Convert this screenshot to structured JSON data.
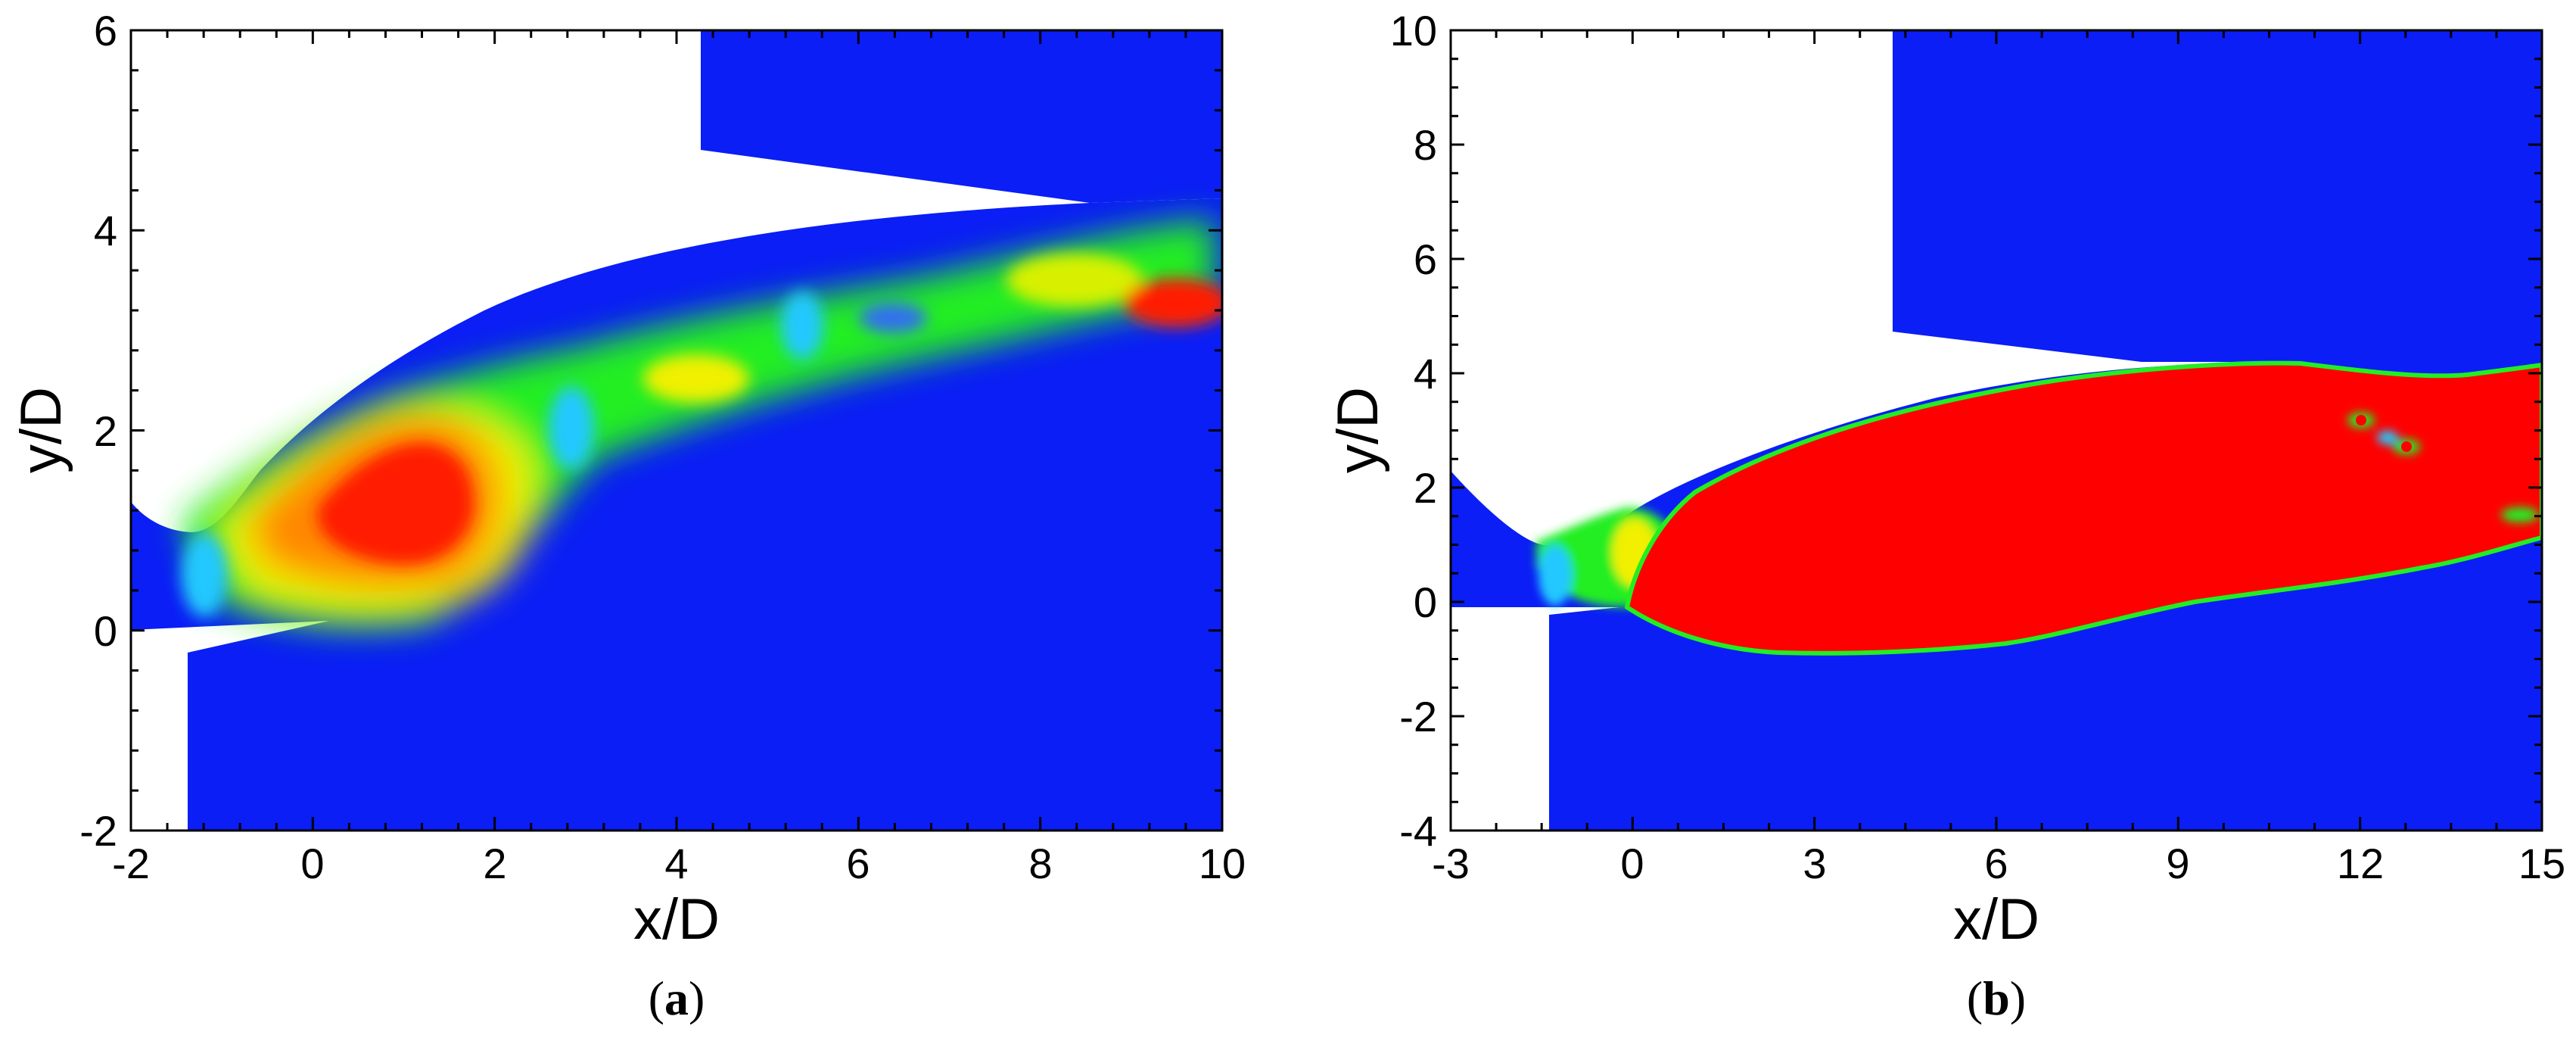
{
  "chart_data": [
    {
      "type": "heatmap",
      "panel_label": "a",
      "xlabel": "x/D",
      "ylabel": "y/D",
      "xlim": [
        -2,
        10
      ],
      "ylim": [
        -2,
        6
      ],
      "xticks": [
        "-2",
        "0",
        "2",
        "4",
        "6",
        "8",
        "10"
      ],
      "yticks": [
        "-2",
        "0",
        "2",
        "4",
        "6"
      ],
      "colors": {
        "background": "#0a1ef5",
        "green": "#22ee22",
        "yellow": "#f0f000",
        "orange": "#ff8800",
        "red": "#ff1a00",
        "cyan": "#22c8ff"
      }
    },
    {
      "type": "heatmap",
      "panel_label": "b",
      "xlabel": "x/D",
      "ylabel": "y/D",
      "xlim": [
        -3,
        15
      ],
      "ylim": [
        -4,
        10
      ],
      "xticks": [
        "-3",
        "0",
        "3",
        "6",
        "9",
        "12",
        "15"
      ],
      "yticks": [
        "-4",
        "-2",
        "0",
        "2",
        "4",
        "6",
        "8",
        "10"
      ],
      "colors": {
        "background": "#0a1ef5",
        "red": "#ff0000",
        "green": "#22ee22",
        "cyan": "#22c8ff"
      }
    }
  ]
}
